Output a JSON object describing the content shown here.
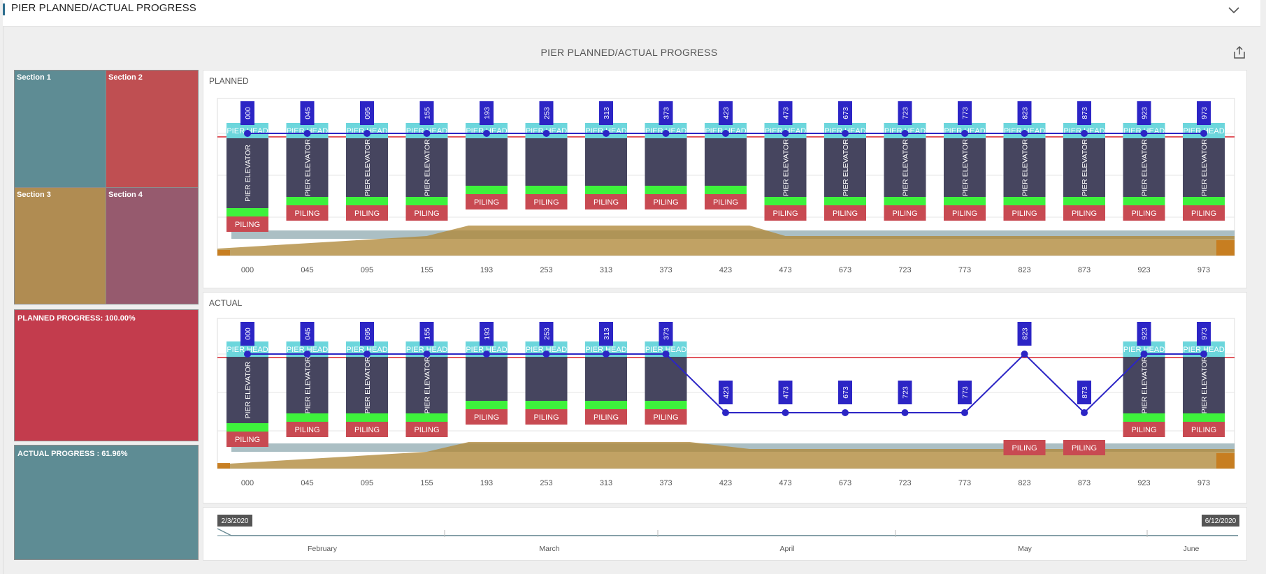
{
  "header": {
    "title": "PIER PLANNED/ACTUAL PROGRESS",
    "chevron_icon": "chevron-down-icon"
  },
  "chart": {
    "title": "PIER PLANNED/ACTUAL PROGRESS",
    "export_icon": "export-share-icon"
  },
  "treemap": {
    "sections": [
      {
        "label": "Section 1",
        "color": "#5e8c94"
      },
      {
        "label": "Section 2",
        "color": "#bf4f52"
      },
      {
        "label": "Section 3",
        "color": "#b08c52"
      },
      {
        "label": "Section 4",
        "color": "#965a6e"
      }
    ]
  },
  "kpis": {
    "planned": {
      "label": "PLANNED PROGRESS: 100.00%",
      "color": "#c33c4d"
    },
    "actual": {
      "label": "ACTUAL PROGRESS : 61.96%",
      "color": "#5e8c94"
    }
  },
  "colors": {
    "pier_head": "#6cd6dc",
    "pier_elevator": "#46455f",
    "green_band": "#3ef23c",
    "piling": "#c84a52",
    "marker": "#2c25c5",
    "baseline_red": "#d8202a",
    "area_gold": "#b08838",
    "area_slate": "#8fa9b0"
  },
  "chart_data": [
    {
      "type": "table",
      "title": "PLANNED",
      "piers": [
        "000",
        "045",
        "095",
        "155",
        "193",
        "253",
        "313",
        "373",
        "423",
        "473",
        "673",
        "723",
        "773",
        "823",
        "873",
        "923",
        "973"
      ],
      "components": [
        "PIER HEAD",
        "PIER ELEVATOR",
        "PILING"
      ],
      "pier_head_label": "PIER HEAD",
      "pier_elevator_label": "PIER ELEVATOR",
      "piling_label": "PILING",
      "elevator_label_shown": [
        true,
        true,
        true,
        true,
        false,
        false,
        false,
        false,
        false,
        true,
        true,
        true,
        true,
        true,
        true,
        true,
        true
      ],
      "marker_level": [
        "top",
        "top",
        "top",
        "top",
        "top",
        "top",
        "top",
        "top",
        "top",
        "top",
        "top",
        "top",
        "top",
        "top",
        "top",
        "top",
        "top"
      ],
      "pier_head_shown": [
        true,
        true,
        true,
        true,
        true,
        true,
        true,
        true,
        true,
        true,
        true,
        true,
        true,
        true,
        true,
        true,
        true
      ],
      "piling_shown": [
        true,
        true,
        true,
        true,
        true,
        true,
        true,
        true,
        true,
        true,
        true,
        true,
        true,
        true,
        true,
        true,
        true
      ]
    },
    {
      "type": "table",
      "title": "ACTUAL",
      "piers": [
        "000",
        "045",
        "095",
        "155",
        "193",
        "253",
        "313",
        "373",
        "423",
        "473",
        "673",
        "723",
        "773",
        "823",
        "873",
        "923",
        "973"
      ],
      "components": [
        "PIER HEAD",
        "PIER ELEVATOR",
        "PILING"
      ],
      "pier_head_label": "PIER HEAD",
      "pier_elevator_label": "PIER ELEVATOR",
      "piling_label": "PILING",
      "elevator_label_shown": [
        true,
        true,
        true,
        true,
        false,
        false,
        false,
        false,
        false,
        false,
        false,
        false,
        false,
        false,
        false,
        true,
        true
      ],
      "marker_level": [
        "top",
        "top",
        "top",
        "top",
        "top",
        "top",
        "top",
        "top",
        "low",
        "low",
        "low",
        "low",
        "low",
        "top",
        "low",
        "top",
        "top"
      ],
      "pier_head_shown": [
        true,
        true,
        true,
        true,
        true,
        true,
        true,
        true,
        false,
        false,
        false,
        false,
        false,
        false,
        false,
        true,
        true
      ],
      "piling_shown": [
        true,
        true,
        true,
        true,
        true,
        true,
        true,
        true,
        false,
        false,
        false,
        false,
        false,
        true,
        true,
        true,
        true
      ]
    }
  ],
  "timeline": {
    "start": "2/3/2020",
    "end": "6/12/2020",
    "months": [
      "February",
      "March",
      "April",
      "May",
      "June"
    ]
  }
}
